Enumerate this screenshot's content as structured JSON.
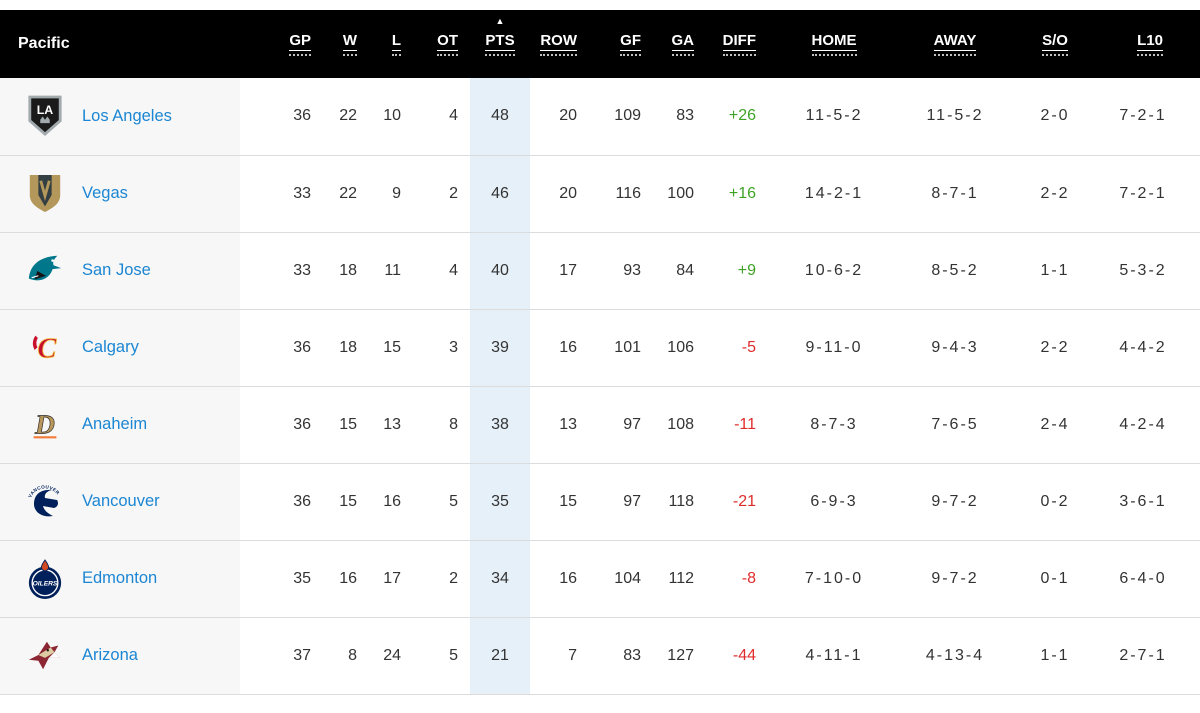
{
  "header": {
    "division": "Pacific",
    "columns": [
      "GP",
      "W",
      "L",
      "OT",
      "PTS",
      "ROW",
      "GF",
      "GA",
      "DIFF",
      "HOME",
      "AWAY",
      "S/O",
      "L10"
    ],
    "sort": {
      "column": "PTS",
      "direction": "ascending"
    }
  },
  "icons": {
    "sort_arrow": "▲"
  },
  "colors": {
    "header_bg": "#000000",
    "header_text": "#ffffff",
    "team_link": "#1b86d3",
    "positive_diff": "#3ea324",
    "negative_diff": "#df2c2c",
    "pts_highlight": "#e6f0f9",
    "team_col_bg": "#f7f7f7",
    "row_border": "#dcdcdc",
    "stat_text": "#333333"
  },
  "teams": [
    {
      "name": "Los Angeles",
      "logo": "los-angeles-kings-logo",
      "stats": {
        "gp": "36",
        "w": "22",
        "l": "10",
        "ot": "4",
        "pts": "48",
        "row": "20",
        "gf": "109",
        "ga": "83",
        "diff": "+26",
        "home": "11-5-2",
        "away": "11-5-2",
        "so": "2-0",
        "l10": "7-2-1"
      }
    },
    {
      "name": "Vegas",
      "logo": "vegas-golden-knights-logo",
      "stats": {
        "gp": "33",
        "w": "22",
        "l": "9",
        "ot": "2",
        "pts": "46",
        "row": "20",
        "gf": "116",
        "ga": "100",
        "diff": "+16",
        "home": "14-2-1",
        "away": "8-7-1",
        "so": "2-2",
        "l10": "7-2-1"
      }
    },
    {
      "name": "San Jose",
      "logo": "san-jose-sharks-logo",
      "stats": {
        "gp": "33",
        "w": "18",
        "l": "11",
        "ot": "4",
        "pts": "40",
        "row": "17",
        "gf": "93",
        "ga": "84",
        "diff": "+9",
        "home": "10-6-2",
        "away": "8-5-2",
        "so": "1-1",
        "l10": "5-3-2"
      }
    },
    {
      "name": "Calgary",
      "logo": "calgary-flames-logo",
      "stats": {
        "gp": "36",
        "w": "18",
        "l": "15",
        "ot": "3",
        "pts": "39",
        "row": "16",
        "gf": "101",
        "ga": "106",
        "diff": "-5",
        "home": "9-11-0",
        "away": "9-4-3",
        "so": "2-2",
        "l10": "4-4-2"
      }
    },
    {
      "name": "Anaheim",
      "logo": "anaheim-ducks-logo",
      "stats": {
        "gp": "36",
        "w": "15",
        "l": "13",
        "ot": "8",
        "pts": "38",
        "row": "13",
        "gf": "97",
        "ga": "108",
        "diff": "-11",
        "home": "8-7-3",
        "away": "7-6-5",
        "so": "2-4",
        "l10": "4-2-4"
      }
    },
    {
      "name": "Vancouver",
      "logo": "vancouver-canucks-logo",
      "stats": {
        "gp": "36",
        "w": "15",
        "l": "16",
        "ot": "5",
        "pts": "35",
        "row": "15",
        "gf": "97",
        "ga": "118",
        "diff": "-21",
        "home": "6-9-3",
        "away": "9-7-2",
        "so": "0-2",
        "l10": "3-6-1"
      }
    },
    {
      "name": "Edmonton",
      "logo": "edmonton-oilers-logo",
      "stats": {
        "gp": "35",
        "w": "16",
        "l": "17",
        "ot": "2",
        "pts": "34",
        "row": "16",
        "gf": "104",
        "ga": "112",
        "diff": "-8",
        "home": "7-10-0",
        "away": "9-7-2",
        "so": "0-1",
        "l10": "6-4-0"
      }
    },
    {
      "name": "Arizona",
      "logo": "arizona-coyotes-logo",
      "stats": {
        "gp": "37",
        "w": "8",
        "l": "24",
        "ot": "5",
        "pts": "21",
        "row": "7",
        "gf": "83",
        "ga": "127",
        "diff": "-44",
        "home": "4-11-1",
        "away": "4-13-4",
        "so": "1-1",
        "l10": "2-7-1"
      }
    }
  ]
}
